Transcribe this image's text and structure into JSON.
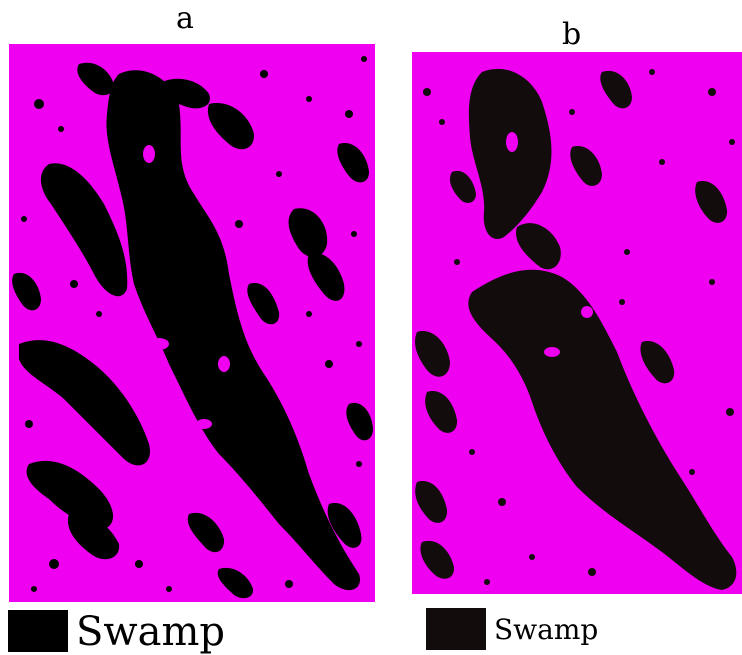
{
  "panels": [
    {
      "id": "a",
      "label": "a"
    },
    {
      "id": "b",
      "label": "b"
    }
  ],
  "colors": {
    "background_class": "#f000f0",
    "swamp_a": "#000000",
    "swamp_b": "#130c0c"
  },
  "legend": {
    "a": {
      "label": "Swamp"
    },
    "b": {
      "label": "Swamp"
    }
  }
}
